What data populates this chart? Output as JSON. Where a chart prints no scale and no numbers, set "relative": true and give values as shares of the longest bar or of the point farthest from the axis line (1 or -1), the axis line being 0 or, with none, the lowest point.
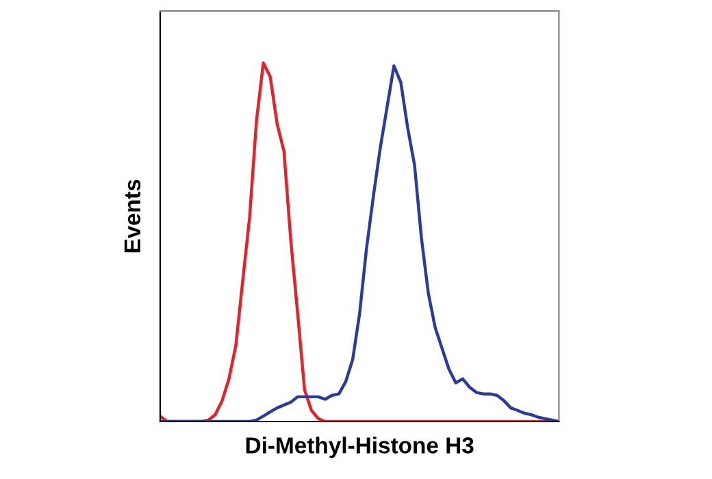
{
  "chart_data": {
    "type": "line",
    "relative": true,
    "xlabel": "Di-Methyl-Histone H3",
    "ylabel": "Events",
    "tick_labels": false,
    "legend": false,
    "marker": "none",
    "line_style": "solid",
    "categories": [
      null,
      null,
      null,
      null,
      null,
      null,
      null,
      null,
      null,
      null,
      null,
      null,
      null,
      null,
      null,
      null,
      null,
      null,
      null,
      null,
      null,
      null,
      null,
      null,
      null,
      null,
      null,
      null,
      null,
      null,
      null,
      null,
      null,
      null,
      null,
      null,
      null,
      null,
      null,
      null,
      null,
      null,
      null,
      null,
      null,
      null,
      null,
      null,
      null,
      null,
      null,
      null,
      null,
      null,
      null,
      null,
      null,
      null,
      null
    ],
    "series": [
      {
        "color": "#e8202a",
        "values": [
          0.015,
          0,
          0,
          0,
          0,
          0,
          0,
          0.004,
          0.019,
          0.058,
          0.119,
          0.212,
          0.392,
          0.569,
          0.838,
          1.0,
          0.962,
          0.831,
          0.754,
          0.504,
          0.3,
          0.088,
          0.031,
          0.008,
          0,
          0,
          0,
          0,
          0,
          0,
          0,
          0,
          0,
          0,
          0,
          0,
          0,
          0,
          0,
          0,
          0,
          0,
          0,
          0,
          0,
          0,
          0,
          0,
          0,
          0,
          0,
          0,
          0,
          0,
          0,
          0,
          0,
          0,
          0
        ]
      },
      {
        "color": "#2b3a9c",
        "values": [
          0,
          0,
          0,
          0,
          0,
          0,
          0,
          0,
          0,
          0,
          0,
          0,
          0,
          0,
          0.004,
          0.015,
          0.027,
          0.038,
          0.046,
          0.054,
          0.069,
          0.069,
          0.069,
          0.069,
          0.062,
          0.073,
          0.077,
          0.112,
          0.173,
          0.3,
          0.481,
          0.627,
          0.762,
          0.877,
          0.992,
          0.946,
          0.819,
          0.715,
          0.512,
          0.358,
          0.262,
          0.204,
          0.146,
          0.108,
          0.119,
          0.096,
          0.081,
          0.077,
          0.077,
          0.073,
          0.058,
          0.038,
          0.031,
          0.023,
          0.019,
          0.012,
          0.008,
          0.004,
          0
        ]
      }
    ]
  }
}
